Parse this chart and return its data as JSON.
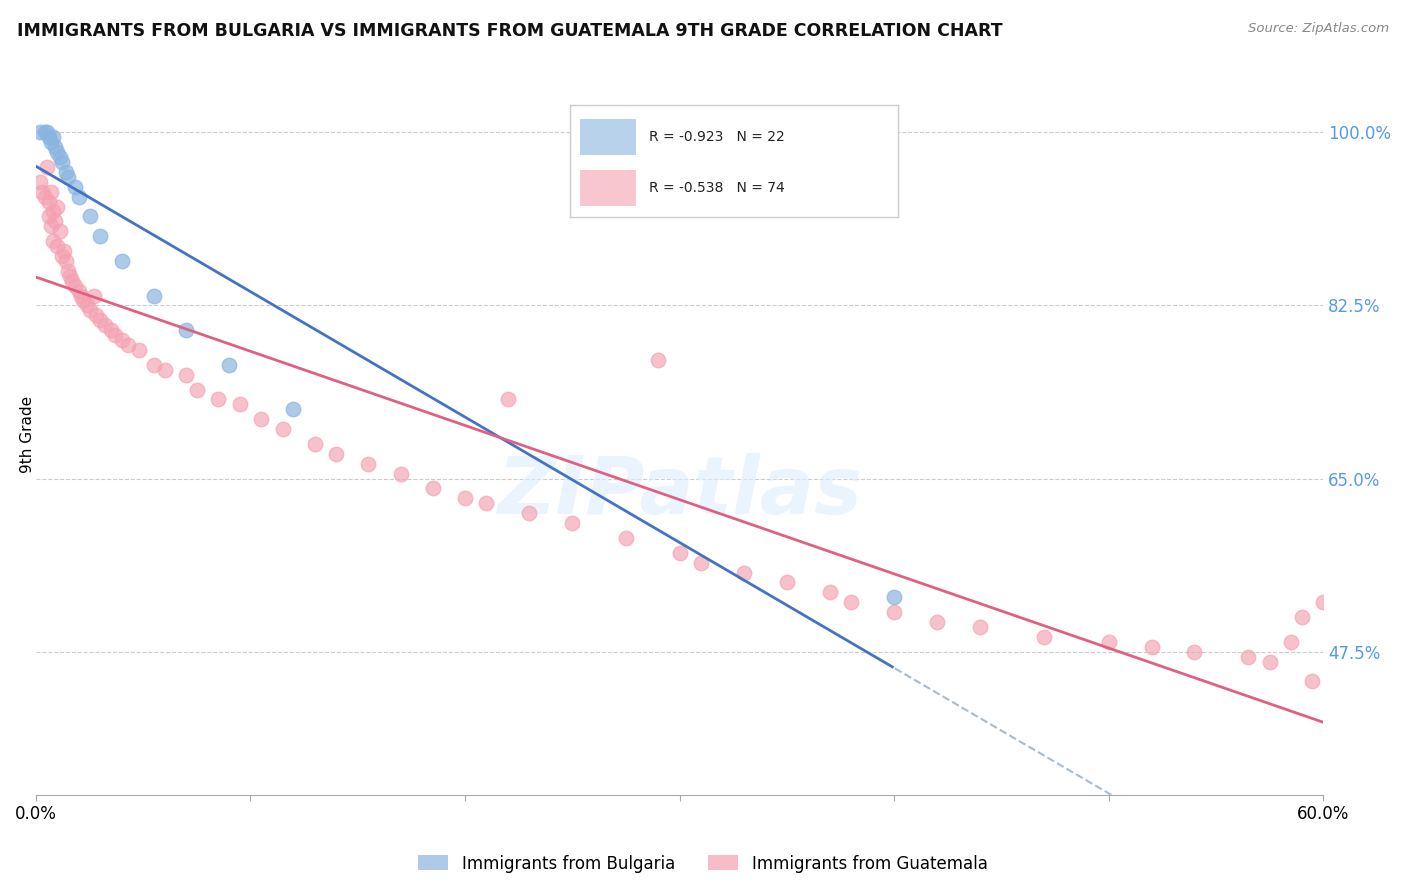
{
  "title": "IMMIGRANTS FROM BULGARIA VS IMMIGRANTS FROM GUATEMALA 9TH GRADE CORRELATION CHART",
  "source": "Source: ZipAtlas.com",
  "ylabel": "9th Grade",
  "bg_color": "#ffffff",
  "grid_color": "#cccccc",
  "bulgaria_color": "#8ab4e0",
  "guatemala_color": "#f4a0b0",
  "line_blue": "#4472c4",
  "line_pink": "#e06080",
  "line_dash": "#aabbcc",
  "xlim": [
    0.0,
    60.0
  ],
  "ylim": [
    33.0,
    106.0
  ],
  "y_ticks": [
    47.5,
    65.0,
    82.5,
    100.0
  ],
  "R_bulgaria": -0.923,
  "N_bulgaria": 22,
  "R_guatemala": -0.538,
  "N_guatemala": 74,
  "bg_x": [
    0.2,
    0.4,
    0.5,
    0.6,
    0.7,
    0.8,
    0.9,
    1.0,
    1.1,
    1.2,
    1.4,
    1.5,
    1.8,
    2.0,
    2.5,
    3.0,
    4.0,
    5.5,
    7.0,
    9.0,
    12.0,
    40.0
  ],
  "bg_y": [
    100.0,
    100.0,
    100.0,
    99.5,
    99.0,
    99.5,
    98.5,
    98.0,
    97.5,
    97.0,
    96.0,
    95.5,
    94.5,
    93.5,
    91.5,
    89.5,
    87.0,
    83.5,
    80.0,
    76.5,
    72.0,
    53.0
  ],
  "gt_x": [
    0.2,
    0.3,
    0.4,
    0.5,
    0.6,
    0.6,
    0.7,
    0.7,
    0.8,
    0.8,
    0.9,
    1.0,
    1.0,
    1.1,
    1.2,
    1.3,
    1.4,
    1.5,
    1.6,
    1.7,
    1.8,
    2.0,
    2.1,
    2.2,
    2.4,
    2.5,
    2.7,
    2.8,
    3.0,
    3.2,
    3.5,
    3.7,
    4.0,
    4.3,
    4.8,
    5.5,
    6.0,
    7.0,
    7.5,
    8.5,
    9.5,
    10.5,
    11.5,
    13.0,
    14.0,
    15.5,
    17.0,
    18.5,
    20.0,
    21.0,
    23.0,
    25.0,
    27.5,
    30.0,
    31.0,
    33.0,
    35.0,
    37.0,
    38.0,
    40.0,
    42.0,
    44.0,
    47.0,
    50.0,
    52.0,
    54.0,
    56.5,
    57.5,
    58.5,
    59.0,
    59.5,
    29.0,
    22.0,
    60.0
  ],
  "gt_y": [
    95.0,
    94.0,
    93.5,
    96.5,
    93.0,
    91.5,
    94.0,
    90.5,
    92.0,
    89.0,
    91.0,
    92.5,
    88.5,
    90.0,
    87.5,
    88.0,
    87.0,
    86.0,
    85.5,
    85.0,
    84.5,
    84.0,
    83.5,
    83.0,
    82.5,
    82.0,
    83.5,
    81.5,
    81.0,
    80.5,
    80.0,
    79.5,
    79.0,
    78.5,
    78.0,
    76.5,
    76.0,
    75.5,
    74.0,
    73.0,
    72.5,
    71.0,
    70.0,
    68.5,
    67.5,
    66.5,
    65.5,
    64.0,
    63.0,
    62.5,
    61.5,
    60.5,
    59.0,
    57.5,
    56.5,
    55.5,
    54.5,
    53.5,
    52.5,
    51.5,
    50.5,
    50.0,
    49.0,
    48.5,
    48.0,
    47.5,
    47.0,
    46.5,
    48.5,
    51.0,
    44.5,
    77.0,
    73.0,
    52.5
  ],
  "watermark_text": "ZIPatlas",
  "legend_label_bg": "Immigrants from Bulgaria",
  "legend_label_gt": "Immigrants from Guatemala"
}
